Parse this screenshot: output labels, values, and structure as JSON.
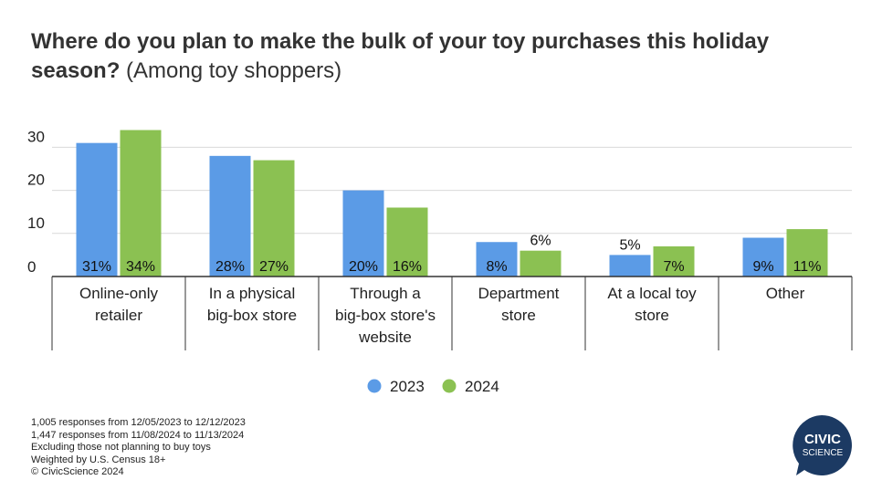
{
  "title_bold": "Where do you plan to make the bulk of your toy purchases this holiday season?",
  "title_rest": "(Among toy shoppers)",
  "chart_data": {
    "type": "bar",
    "categories": [
      [
        "Online-only",
        "retailer"
      ],
      [
        "In a physical",
        "big-box store"
      ],
      [
        "Through a",
        "big-box store's",
        "website"
      ],
      [
        "Department",
        "store"
      ],
      [
        "At a local toy",
        "store"
      ],
      [
        "Other"
      ]
    ],
    "series": [
      {
        "name": "2023",
        "color": "#5b9be6",
        "values": [
          31,
          28,
          20,
          8,
          5,
          9
        ],
        "labels": [
          "31%",
          "28%",
          "20%",
          "8%",
          "5%",
          "9%"
        ]
      },
      {
        "name": "2024",
        "color": "#8bc152",
        "values": [
          34,
          27,
          16,
          6,
          7,
          11
        ],
        "labels": [
          "34%",
          "27%",
          "16%",
          "6%",
          "7%",
          "11%"
        ]
      }
    ],
    "yticks": [
      0,
      10,
      20,
      30
    ],
    "ylim": [
      0,
      37
    ],
    "grid": true,
    "legend": "bottom-center"
  },
  "notes": [
    "1,005 responses from 12/05/2023 to 12/12/2023",
    "1,447 responses from 11/08/2024 to 11/13/2024",
    "Excluding those not planning to buy toys",
    "Weighted by U.S. Census 18+",
    "© CivicScience 2024"
  ],
  "logo": {
    "line1": "CIVIC",
    "line2": "SCIENCE",
    "color": "#1c3a63"
  }
}
